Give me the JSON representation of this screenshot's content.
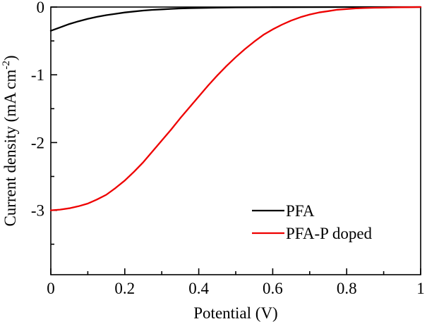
{
  "figure": {
    "background": "#ffffff",
    "frame_color": "#000000"
  },
  "chart_data": {
    "type": "line",
    "title": "",
    "xlabel": "Potential (V)",
    "ylabel": {
      "pre": "Current density (mA cm",
      "sup": "-2",
      "post": ")"
    },
    "xlim": [
      0,
      1
    ],
    "ylim": [
      -3.95,
      0
    ],
    "x_major": [
      0,
      0.2,
      0.4,
      0.6,
      0.8,
      1
    ],
    "x_tick_labels": [
      "0",
      "0.2",
      "0.4",
      "0.6",
      "0.8",
      "1"
    ],
    "x_minor": [
      0.1,
      0.3,
      0.5,
      0.7,
      0.9
    ],
    "y_major": [
      0,
      -1,
      -2,
      -3
    ],
    "y_tick_labels": [
      "0",
      "-1",
      "-2",
      "-3"
    ],
    "y_minor": [
      -0.5,
      -1.5,
      -2.5,
      -3.5
    ],
    "grid": false,
    "legend_position": "inside-lower-right",
    "series": [
      {
        "name": "pfa",
        "label": "PFA",
        "color": "#000000",
        "points": [
          [
            0.0,
            -0.35
          ],
          [
            0.025,
            -0.3
          ],
          [
            0.05,
            -0.25
          ],
          [
            0.075,
            -0.21
          ],
          [
            0.1,
            -0.175
          ],
          [
            0.125,
            -0.145
          ],
          [
            0.15,
            -0.12
          ],
          [
            0.175,
            -0.1
          ],
          [
            0.2,
            -0.08
          ],
          [
            0.225,
            -0.065
          ],
          [
            0.25,
            -0.052
          ],
          [
            0.275,
            -0.042
          ],
          [
            0.3,
            -0.034
          ],
          [
            0.325,
            -0.027
          ],
          [
            0.35,
            -0.021
          ],
          [
            0.375,
            -0.017
          ],
          [
            0.4,
            -0.013
          ],
          [
            0.45,
            -0.008
          ],
          [
            0.5,
            -0.005
          ],
          [
            0.6,
            -0.002
          ],
          [
            0.7,
            -0.001
          ],
          [
            0.8,
            0.0
          ],
          [
            0.9,
            0.0
          ],
          [
            1.0,
            0.0
          ]
        ]
      },
      {
        "name": "pfa-p-doped",
        "label": "PFA-P doped",
        "color": "#ee0000",
        "points": [
          [
            0.0,
            -3.0
          ],
          [
            0.025,
            -2.99
          ],
          [
            0.05,
            -2.97
          ],
          [
            0.075,
            -2.94
          ],
          [
            0.1,
            -2.9
          ],
          [
            0.125,
            -2.84
          ],
          [
            0.15,
            -2.77
          ],
          [
            0.175,
            -2.67
          ],
          [
            0.2,
            -2.56
          ],
          [
            0.225,
            -2.43
          ],
          [
            0.25,
            -2.29
          ],
          [
            0.275,
            -2.13
          ],
          [
            0.3,
            -1.97
          ],
          [
            0.325,
            -1.81
          ],
          [
            0.35,
            -1.64
          ],
          [
            0.375,
            -1.48
          ],
          [
            0.4,
            -1.32
          ],
          [
            0.425,
            -1.16
          ],
          [
            0.45,
            -1.01
          ],
          [
            0.475,
            -0.87
          ],
          [
            0.5,
            -0.74
          ],
          [
            0.525,
            -0.62
          ],
          [
            0.55,
            -0.51
          ],
          [
            0.575,
            -0.41
          ],
          [
            0.6,
            -0.33
          ],
          [
            0.625,
            -0.26
          ],
          [
            0.65,
            -0.2
          ],
          [
            0.675,
            -0.15
          ],
          [
            0.7,
            -0.11
          ],
          [
            0.725,
            -0.08
          ],
          [
            0.75,
            -0.06
          ],
          [
            0.775,
            -0.04
          ],
          [
            0.8,
            -0.03
          ],
          [
            0.825,
            -0.02
          ],
          [
            0.85,
            -0.015
          ],
          [
            0.875,
            -0.01
          ],
          [
            0.9,
            -0.008
          ],
          [
            0.925,
            -0.005
          ],
          [
            0.95,
            -0.003
          ],
          [
            0.975,
            -0.002
          ],
          [
            1.0,
            0.0
          ]
        ]
      }
    ]
  }
}
